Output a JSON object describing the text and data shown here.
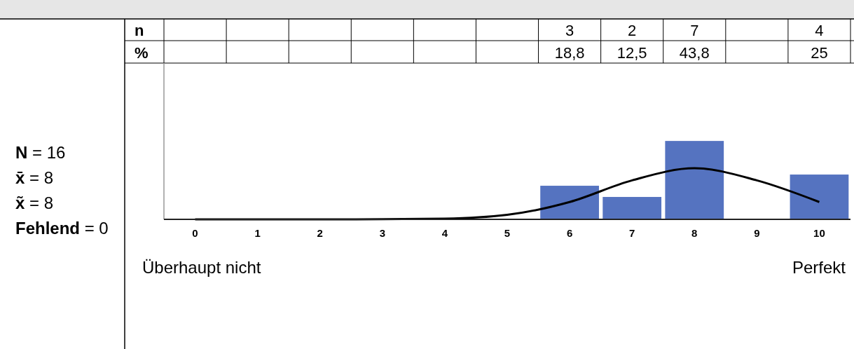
{
  "chart_data": {
    "type": "bar",
    "categories": [
      "0",
      "1",
      "2",
      "3",
      "4",
      "5",
      "6",
      "7",
      "8",
      "9",
      "10"
    ],
    "series": [
      {
        "color": "#5573c0",
        "values": [
          0,
          0,
          0,
          0,
          0,
          0,
          3,
          2,
          7,
          0,
          4
        ],
        "value_labels": [
          null,
          null,
          null,
          null,
          null,
          null,
          "3",
          "2",
          "7",
          null,
          "4"
        ]
      },
      {
        "type": "line",
        "color": "#000000",
        "values": [
          0,
          0,
          0,
          0.01,
          0.06,
          0.4,
          1.55,
          3.48,
          4.56,
          3.48,
          1.55
        ]
      }
    ],
    "marker": "none",
    "line_style": "solid",
    "grid": false,
    "annotations": [
      "N = 16",
      "x̄ = 8",
      "x̃ = 8",
      "Fehlend = 0",
      "n",
      "%",
      "Überhaupt nicht",
      "Perfekt",
      "18,8",
      "12,5",
      "43,8",
      "25"
    ]
  }
}
